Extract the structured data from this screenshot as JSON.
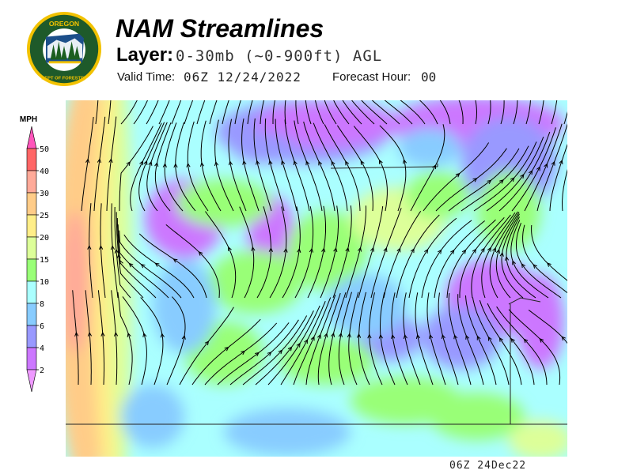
{
  "header": {
    "logo_text": "OREGON DEPARTMENT OF FORESTRY",
    "title": "NAM Streamlines",
    "layer_label": "Layer:",
    "layer_value": "0-30mb (~0-900ft) AGL",
    "valid_time_label": "Valid Time:",
    "valid_time_value": "06Z 12/24/2022",
    "forecast_hour_label": "Forecast Hour:",
    "forecast_hour_value": "00"
  },
  "legend": {
    "unit": "MPH",
    "ticks": [
      "50",
      "40",
      "30",
      "25",
      "20",
      "15",
      "10",
      "8",
      "6",
      "4",
      "2"
    ],
    "colors": {
      "above_50": "#ff55bb",
      "40_50": "#ff6666",
      "30_40": "#ffaa99",
      "25_30": "#ffcc88",
      "20_25": "#ffee88",
      "15_20": "#ddff99",
      "10_15": "#99ff77",
      "8_10": "#aaffff",
      "6_8": "#88ccff",
      "4_6": "#9999ff",
      "2_4": "#cc77ff",
      "below_2": "#ee99ff"
    }
  },
  "map": {
    "content": "wind speed shading with streamlines over Oregon",
    "streamline_color": "#000000"
  },
  "footer": {
    "timestamp": "06Z 24Dec22"
  }
}
